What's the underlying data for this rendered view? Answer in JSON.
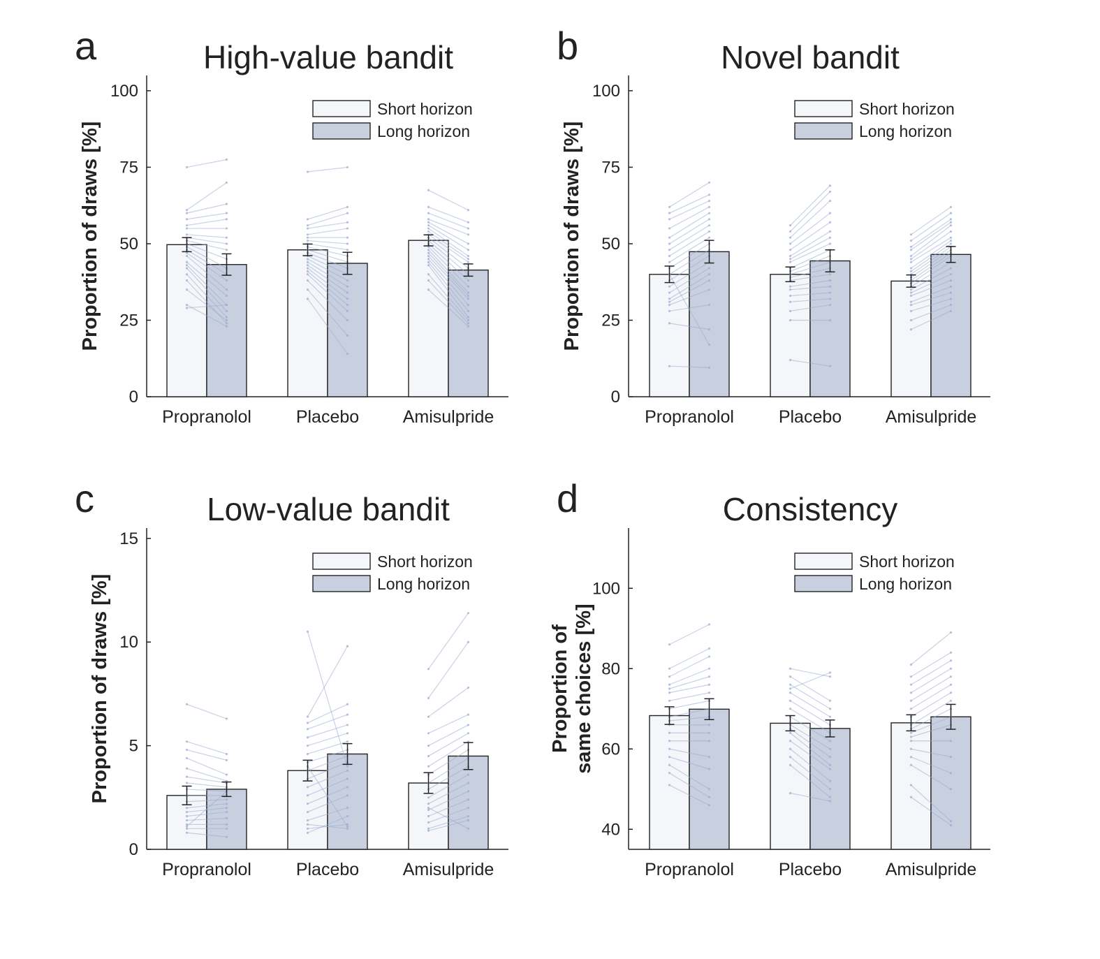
{
  "colors": {
    "short_fill": "#f4f6f9",
    "long_fill": "#c8d0e0",
    "bar_stroke": "#222222",
    "subject_line": "#9aabd2",
    "axis": "#222222"
  },
  "chart_data": [
    {
      "type": "bar",
      "letter": "a",
      "title": "High-value bandit",
      "ylabel": [
        "Proportion of draws [%]"
      ],
      "ylim": [
        0,
        105
      ],
      "yticks": [
        0,
        25,
        50,
        75,
        100
      ],
      "categories": [
        "Propranolol",
        "Placebo",
        "Amisulpride"
      ],
      "legend": [
        "Short horizon",
        "Long horizon"
      ],
      "series": [
        {
          "name": "Short horizon",
          "values": [
            49.7,
            48.0,
            51.1
          ],
          "errors": [
            2.3,
            1.9,
            1.8
          ]
        },
        {
          "name": "Long horizon",
          "values": [
            43.2,
            43.6,
            41.4
          ],
          "errors": [
            3.5,
            3.6,
            2.0
          ]
        }
      ],
      "subjects": [
        [
          [
            75,
            77.5
          ],
          [
            61,
            70
          ],
          [
            60,
            63
          ],
          [
            58,
            60
          ],
          [
            56,
            58
          ],
          [
            55,
            55
          ],
          [
            53,
            52
          ],
          [
            52,
            50
          ],
          [
            51,
            48
          ],
          [
            50,
            45
          ],
          [
            49,
            42
          ],
          [
            48,
            40
          ],
          [
            47,
            38
          ],
          [
            46,
            35
          ],
          [
            44,
            33
          ],
          [
            43,
            30
          ],
          [
            42,
            28
          ],
          [
            40,
            26
          ],
          [
            38,
            24
          ],
          [
            35,
            25
          ],
          [
            30,
            23
          ],
          [
            29,
            30
          ]
        ],
        [
          [
            73.5,
            75
          ],
          [
            58,
            62
          ],
          [
            56,
            60
          ],
          [
            55,
            57
          ],
          [
            53,
            55
          ],
          [
            52,
            52
          ],
          [
            51,
            50
          ],
          [
            50,
            48
          ],
          [
            49,
            46
          ],
          [
            48,
            44
          ],
          [
            47,
            42
          ],
          [
            46,
            40
          ],
          [
            45,
            38
          ],
          [
            44,
            36
          ],
          [
            43,
            34
          ],
          [
            42,
            32
          ],
          [
            41,
            30
          ],
          [
            40,
            28
          ],
          [
            38,
            25
          ],
          [
            35,
            20
          ],
          [
            32,
            14
          ]
        ],
        [
          [
            67.5,
            61
          ],
          [
            62,
            57
          ],
          [
            60,
            55
          ],
          [
            58,
            53
          ],
          [
            57,
            50
          ],
          [
            56,
            48
          ],
          [
            55,
            46
          ],
          [
            54,
            45
          ],
          [
            53,
            44
          ],
          [
            52,
            42
          ],
          [
            51,
            40
          ],
          [
            50,
            38
          ],
          [
            49,
            36
          ],
          [
            48,
            34
          ],
          [
            47,
            33
          ],
          [
            46,
            32
          ],
          [
            45,
            30
          ],
          [
            44,
            28
          ],
          [
            43,
            26
          ],
          [
            40,
            25
          ],
          [
            38,
            24
          ],
          [
            35,
            23
          ]
        ]
      ]
    },
    {
      "type": "bar",
      "letter": "b",
      "title": "Novel bandit",
      "ylabel": [
        "Proportion of draws [%]"
      ],
      "ylim": [
        0,
        105
      ],
      "yticks": [
        0,
        25,
        50,
        75,
        100
      ],
      "categories": [
        "Propranolol",
        "Placebo",
        "Amisulpride"
      ],
      "legend": [
        "Short horizon",
        "Long horizon"
      ],
      "series": [
        {
          "name": "Short horizon",
          "values": [
            40.0,
            40.0,
            37.8
          ],
          "errors": [
            2.7,
            2.4,
            2.0
          ]
        },
        {
          "name": "Long horizon",
          "values": [
            47.4,
            44.4,
            46.5
          ],
          "errors": [
            3.7,
            3.6,
            2.6
          ]
        }
      ],
      "subjects": [
        [
          [
            62,
            70
          ],
          [
            60,
            66
          ],
          [
            58,
            64
          ],
          [
            55,
            62
          ],
          [
            52,
            60
          ],
          [
            50,
            58
          ],
          [
            48,
            56
          ],
          [
            46,
            54
          ],
          [
            44,
            52
          ],
          [
            42,
            50
          ],
          [
            40,
            48
          ],
          [
            38,
            46
          ],
          [
            36,
            44
          ],
          [
            34,
            42
          ],
          [
            32,
            40
          ],
          [
            31,
            38
          ],
          [
            30,
            35
          ],
          [
            28,
            30
          ],
          [
            24,
            22
          ],
          [
            10,
            9.5
          ],
          [
            40,
            17
          ]
        ],
        [
          [
            56,
            69
          ],
          [
            54,
            67
          ],
          [
            52,
            64
          ],
          [
            50,
            60
          ],
          [
            48,
            57
          ],
          [
            46,
            54
          ],
          [
            45,
            52
          ],
          [
            44,
            50
          ],
          [
            42,
            48
          ],
          [
            41,
            46
          ],
          [
            40,
            44
          ],
          [
            39,
            42
          ],
          [
            38,
            40
          ],
          [
            36,
            38
          ],
          [
            35,
            36
          ],
          [
            33,
            34
          ],
          [
            31,
            32
          ],
          [
            28,
            30
          ],
          [
            25,
            25
          ],
          [
            12,
            10
          ]
        ],
        [
          [
            53,
            62
          ],
          [
            51,
            60
          ],
          [
            49,
            58
          ],
          [
            48,
            57
          ],
          [
            46,
            56
          ],
          [
            45,
            54
          ],
          [
            44,
            52
          ],
          [
            42,
            51
          ],
          [
            41,
            50
          ],
          [
            40,
            49
          ],
          [
            39,
            48
          ],
          [
            38,
            47
          ],
          [
            37,
            46
          ],
          [
            36,
            44
          ],
          [
            35,
            42
          ],
          [
            34,
            40
          ],
          [
            33,
            38
          ],
          [
            31,
            36
          ],
          [
            30,
            34
          ],
          [
            28,
            32
          ],
          [
            25,
            30
          ],
          [
            22,
            28
          ]
        ]
      ]
    },
    {
      "type": "bar",
      "letter": "c",
      "title": "Low-value bandit",
      "ylabel": [
        "Proportion of draws [%]"
      ],
      "ylim": [
        0,
        15.5
      ],
      "yticks": [
        0,
        5,
        10,
        15
      ],
      "categories": [
        "Propranolol",
        "Placebo",
        "Amisulpride"
      ],
      "legend": [
        "Short horizon",
        "Long horizon"
      ],
      "series": [
        {
          "name": "Short horizon",
          "values": [
            2.6,
            3.8,
            3.2
          ],
          "errors": [
            0.45,
            0.5,
            0.5
          ]
        },
        {
          "name": "Long horizon",
          "values": [
            2.9,
            4.6,
            4.5
          ],
          "errors": [
            0.35,
            0.5,
            0.65
          ]
        }
      ],
      "subjects": [
        [
          [
            7,
            6.3
          ],
          [
            5.2,
            4.6
          ],
          [
            4.8,
            4.3
          ],
          [
            4.4,
            3.6
          ],
          [
            3.9,
            3.3
          ],
          [
            3.5,
            3.2
          ],
          [
            3.2,
            3.0
          ],
          [
            2.9,
            2.8
          ],
          [
            2.6,
            2.6
          ],
          [
            2.3,
            2.4
          ],
          [
            2.0,
            2.2
          ],
          [
            1.8,
            2.0
          ],
          [
            1.6,
            1.8
          ],
          [
            1.4,
            1.5
          ],
          [
            1.2,
            1.2
          ],
          [
            1.0,
            1.0
          ],
          [
            0.8,
            0.6
          ],
          [
            1.1,
            2.8
          ]
        ],
        [
          [
            10.5,
            4.0
          ],
          [
            6.4,
            9.8
          ],
          [
            6.1,
            7.0
          ],
          [
            5.8,
            6.5
          ],
          [
            5.4,
            6.0
          ],
          [
            5.0,
            5.6
          ],
          [
            4.6,
            5.2
          ],
          [
            4.2,
            4.8
          ],
          [
            3.8,
            4.5
          ],
          [
            3.4,
            4.2
          ],
          [
            3.0,
            3.8
          ],
          [
            2.6,
            3.4
          ],
          [
            2.2,
            3.0
          ],
          [
            1.8,
            2.6
          ],
          [
            1.4,
            2.0
          ],
          [
            1.2,
            1.0
          ],
          [
            1.0,
            1.2
          ],
          [
            0.8,
            1.6
          ],
          [
            4.0,
            1.1
          ]
        ],
        [
          [
            8.7,
            11.4
          ],
          [
            7.3,
            10.0
          ],
          [
            6.4,
            7.8
          ],
          [
            5.6,
            6.5
          ],
          [
            5.0,
            6.0
          ],
          [
            4.5,
            5.6
          ],
          [
            4.0,
            5.2
          ],
          [
            3.6,
            4.8
          ],
          [
            3.2,
            4.4
          ],
          [
            2.9,
            4.0
          ],
          [
            2.5,
            3.6
          ],
          [
            2.2,
            3.2
          ],
          [
            1.9,
            2.8
          ],
          [
            1.6,
            2.4
          ],
          [
            1.3,
            2.0
          ],
          [
            1.0,
            1.6
          ],
          [
            0.9,
            1.4
          ],
          [
            2.0,
            1.0
          ]
        ]
      ]
    },
    {
      "type": "bar",
      "letter": "d",
      "title": "Consistency",
      "ylabel": [
        "Proportion of",
        "same choices [%]"
      ],
      "ylim": [
        35,
        115
      ],
      "yticks": [
        40,
        60,
        80,
        100
      ],
      "categories": [
        "Propranolol",
        "Placebo",
        "Amisulpride"
      ],
      "legend": [
        "Short horizon",
        "Long horizon"
      ],
      "series": [
        {
          "name": "Short horizon",
          "values": [
            68.3,
            66.4,
            66.5
          ],
          "errors": [
            2.2,
            1.9,
            2.0
          ]
        },
        {
          "name": "Long horizon",
          "values": [
            69.9,
            65.1,
            68.0
          ],
          "errors": [
            2.6,
            2.1,
            3.1
          ]
        }
      ],
      "subjects": [
        [
          [
            86,
            91
          ],
          [
            80,
            85
          ],
          [
            78,
            83
          ],
          [
            76,
            80
          ],
          [
            75,
            78
          ],
          [
            74,
            76
          ],
          [
            72,
            74
          ],
          [
            70,
            72
          ],
          [
            68,
            70
          ],
          [
            67,
            68
          ],
          [
            66,
            66
          ],
          [
            64,
            64
          ],
          [
            62,
            62
          ],
          [
            60,
            58
          ],
          [
            58,
            55
          ],
          [
            56,
            50
          ],
          [
            54,
            48
          ],
          [
            51,
            46
          ]
        ],
        [
          [
            80,
            78
          ],
          [
            78,
            72
          ],
          [
            76,
            70
          ],
          [
            74,
            68
          ],
          [
            72,
            66
          ],
          [
            70,
            64
          ],
          [
            68,
            62
          ],
          [
            66,
            60
          ],
          [
            65,
            58
          ],
          [
            64,
            56
          ],
          [
            62,
            55
          ],
          [
            60,
            52
          ],
          [
            58,
            50
          ],
          [
            56,
            48
          ],
          [
            49,
            47
          ],
          [
            75,
            79
          ]
        ],
        [
          [
            81,
            89
          ],
          [
            78,
            84
          ],
          [
            76,
            82
          ],
          [
            74,
            80
          ],
          [
            72,
            78
          ],
          [
            70,
            76
          ],
          [
            68,
            74
          ],
          [
            66,
            72
          ],
          [
            65,
            70
          ],
          [
            64,
            68
          ],
          [
            63,
            66
          ],
          [
            62,
            62
          ],
          [
            60,
            58
          ],
          [
            58,
            54
          ],
          [
            56,
            50
          ],
          [
            51,
            42
          ],
          [
            48,
            41
          ]
        ]
      ]
    }
  ]
}
